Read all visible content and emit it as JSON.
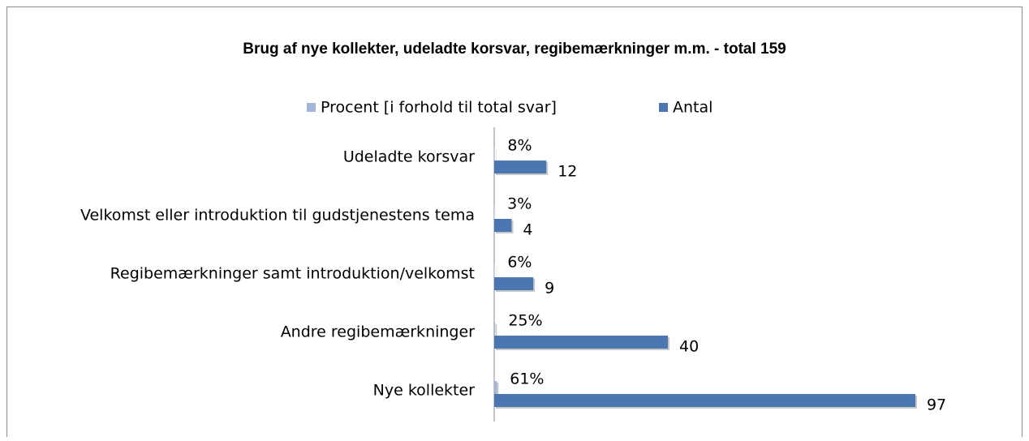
{
  "chart_data": {
    "type": "hbar",
    "title": "Brug af nye kollekter, udeladte korsvar, regibemærkninger m.m. - total 159",
    "categories": [
      "Udeladte korsvar",
      "Velkomst eller introduktion til gudstjenestens tema",
      "Regibemærkninger samt introduktion/velkomst",
      "Andre regibemærkninger",
      "Nye kollekter"
    ],
    "series": [
      {
        "name": "Procent [i forhold til total svar]",
        "color": "#a3b6d9",
        "values": [
          0.08,
          0.03,
          0.06,
          0.25,
          0.61
        ],
        "value_labels": [
          "8%",
          "3%",
          "6%",
          "25%",
          "61%"
        ]
      },
      {
        "name": "Antal",
        "color": "#4a76b2",
        "values": [
          12,
          4,
          9,
          40,
          97
        ]
      }
    ],
    "xlim": [
      0,
      100
    ],
    "legend": "top"
  }
}
